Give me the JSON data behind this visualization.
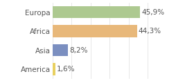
{
  "categories": [
    "Europa",
    "Africa",
    "Asia",
    "America"
  ],
  "values": [
    45.9,
    44.3,
    8.2,
    1.6
  ],
  "labels": [
    "45,9%",
    "44,3%",
    "8,2%",
    "1,6%"
  ],
  "bar_colors": [
    "#adc990",
    "#e8b87a",
    "#7b8fc0",
    "#e8d060"
  ],
  "background_color": "#ffffff",
  "xlim": [
    0,
    62
  ],
  "bar_height": 0.65,
  "label_fontsize": 7.5,
  "tick_fontsize": 7.5,
  "label_color": "#555555",
  "grid_color": "#dddddd"
}
